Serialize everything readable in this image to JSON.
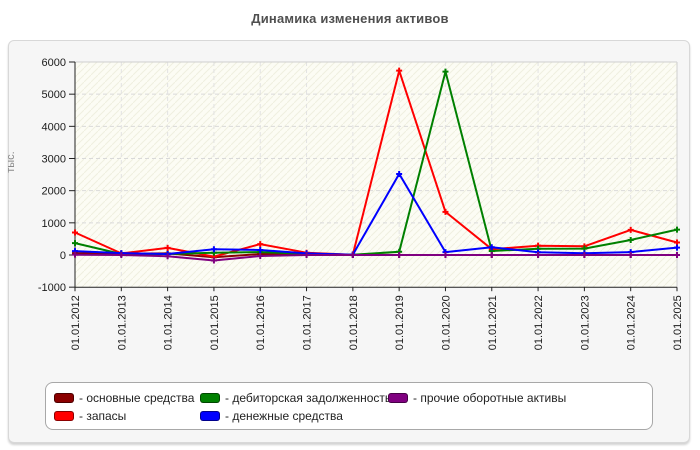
{
  "page": {
    "title": "Динамика изменения активов"
  },
  "chart_data": {
    "type": "line",
    "title": "Динамика изменения активов",
    "ylabel": "тыс.",
    "ylim": [
      -1000,
      6000
    ],
    "yticks": [
      -1000,
      0,
      1000,
      2000,
      3000,
      4000,
      5000,
      6000
    ],
    "grid": "dashed-horizontal-and-vertical",
    "plot_background": "#fcfcf4",
    "legend_position": "bottom",
    "legend_prefix": "- ",
    "legend_columns": [
      [
        0,
        1
      ],
      [
        2,
        3
      ],
      [
        4
      ]
    ],
    "categories": [
      "01.01.2012",
      "01.01.2013",
      "01.01.2014",
      "01.01.2015",
      "01.01.2016",
      "01.01.2017",
      "01.01.2018",
      "01.01.2019",
      "01.01.2020",
      "01.01.2021",
      "01.01.2022",
      "01.01.2023",
      "01.01.2024",
      "01.01.2025"
    ],
    "series": [
      {
        "id": "fixed-assets",
        "name": "основные средства",
        "color": "#8b0000",
        "values": [
          60,
          40,
          50,
          -70,
          30,
          20,
          5,
          0,
          0,
          0,
          0,
          0,
          0,
          0
        ]
      },
      {
        "id": "inventory",
        "name": "запасы",
        "color": "#ff0000",
        "values": [
          700,
          50,
          220,
          -50,
          340,
          70,
          10,
          5730,
          1340,
          180,
          290,
          270,
          780,
          390
        ]
      },
      {
        "id": "receivables",
        "name": "дебиторская задолженность",
        "color": "#008000",
        "values": [
          370,
          30,
          30,
          70,
          90,
          40,
          10,
          100,
          5700,
          125,
          195,
          200,
          465,
          790
        ]
      },
      {
        "id": "cash",
        "name": "денежные средства",
        "color": "#0000ff",
        "values": [
          120,
          60,
          30,
          180,
          155,
          50,
          10,
          2520,
          90,
          240,
          85,
          55,
          90,
          230
        ]
      },
      {
        "id": "other-current-assets",
        "name": "прочие оборотные активы",
        "color": "#800080",
        "values": [
          10,
          0,
          -40,
          -170,
          -30,
          0,
          0,
          0,
          0,
          0,
          0,
          0,
          0,
          0
        ]
      }
    ]
  }
}
